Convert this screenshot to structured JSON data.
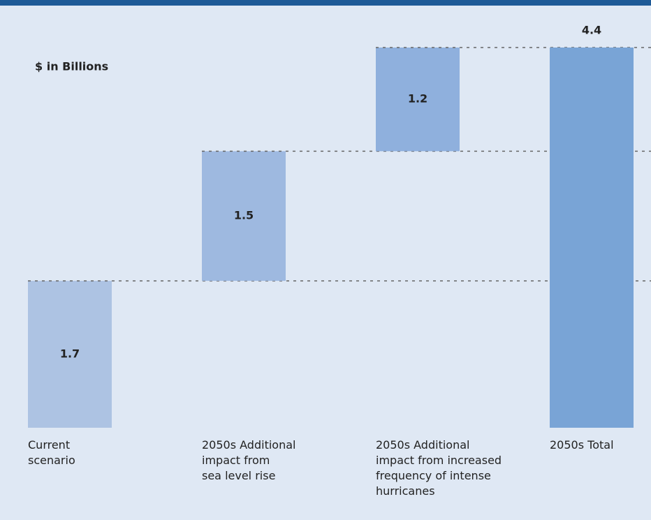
{
  "chart_data": {
    "type": "waterfall",
    "ylabel": "$ in Billions",
    "categories": [
      "Current\nscenario",
      "2050s Additional\nimpact from\nsea level rise",
      "2050s Additional\nimpact from increased\nfrequency of intense\nhurricanes",
      "2050s Total"
    ],
    "values": [
      1.7,
      1.5,
      1.2,
      4.4
    ],
    "measure": [
      "absolute",
      "relative",
      "relative",
      "total"
    ],
    "colors": [
      "#adc3e3",
      "#9eb9e0",
      "#8fb0dd",
      "#79a4d6"
    ]
  }
}
